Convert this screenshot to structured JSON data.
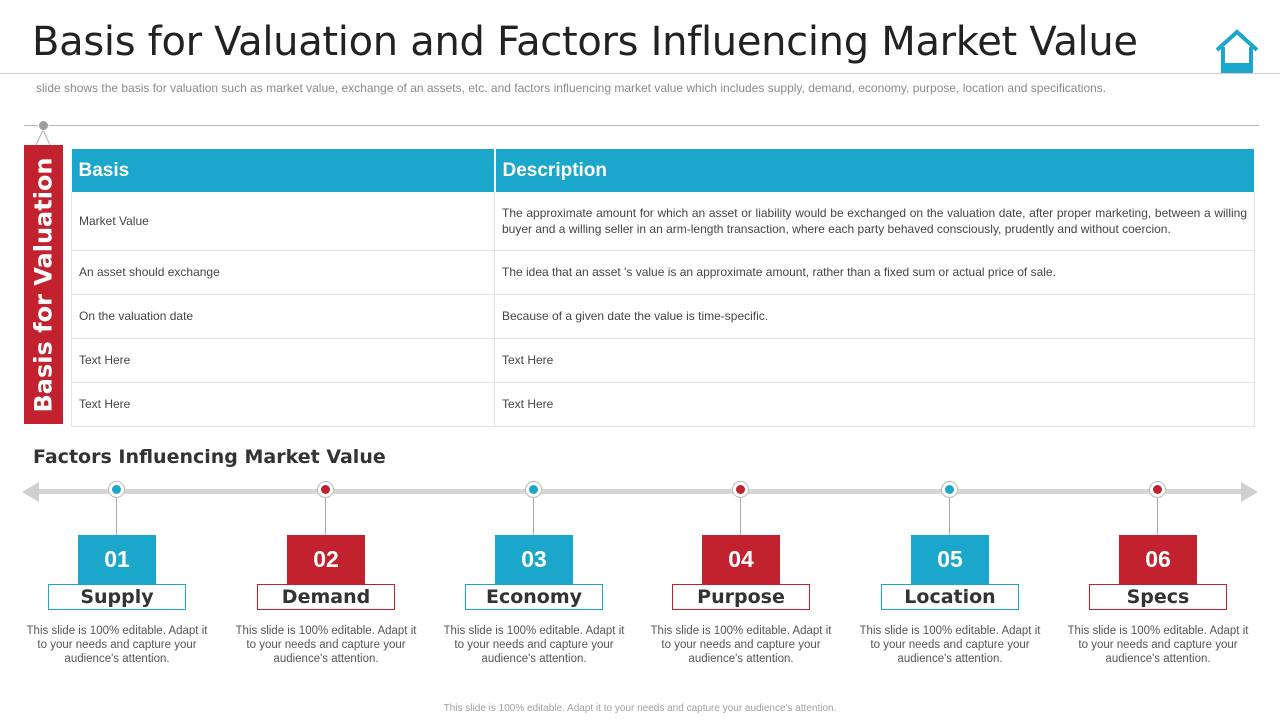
{
  "header": {
    "title": "Basis for Valuation and Factors Influencing Market Value",
    "subtitle": "slide shows the basis for valuation  such as market value,  exchange of an assets, etc. and factors influencing  market value  which includes supply,  demand,  economy,  purpose,  location and specifications.",
    "icon": "home-icon",
    "accent_color": "#1ba6cb"
  },
  "side_label": {
    "text": "Basis for Valuation",
    "color": "#c1222e"
  },
  "table": {
    "columns": [
      "Basis",
      "Description"
    ],
    "rows": [
      [
        "Market Value",
        "The approximate amount for which an asset or liability would be exchanged on the valuation date, after proper marketing, between a willing buyer and a willing seller in an arm-length transaction, where each party behaved consciously, prudently and without coercion."
      ],
      [
        "An asset should exchange",
        "The idea that an asset 's value  is an approximate  amount, rather than a fixed sum or actual price of sale."
      ],
      [
        "On the valuation  date",
        "Because of a given  date the value  is time-specific."
      ],
      [
        "Text Here",
        "Text Here"
      ],
      [
        "Text Here",
        "Text Here"
      ]
    ]
  },
  "factors": {
    "heading": "Factors Influencing Market Value",
    "items": [
      {
        "number": "01",
        "label": "Supply",
        "color": "#1ba6cb",
        "desc": "This slide is 100% editable. Adapt it to your needs and capture your audience's attention."
      },
      {
        "number": "02",
        "label": "Demand",
        "color": "#c1222e",
        "desc": "This slide is 100% editable. Adapt it to your needs and capture your audience's attention."
      },
      {
        "number": "03",
        "label": "Economy",
        "color": "#1ba6cb",
        "desc": "This slide is 100% editable. Adapt it to your needs and capture your audience's attention."
      },
      {
        "number": "04",
        "label": "Purpose",
        "color": "#c1222e",
        "desc": "This slide is 100% editable. Adapt it to your needs and capture your audience's attention."
      },
      {
        "number": "05",
        "label": "Location",
        "color": "#1ba6cb",
        "desc": "This slide is 100% editable. Adapt it to your needs and capture your audience's attention."
      },
      {
        "number": "06",
        "label": "Specs",
        "color": "#c1222e",
        "desc": "This slide is 100% editable. Adapt it to your needs and capture your audience's attention."
      }
    ]
  },
  "footer": "This slide is 100% editable.  Adapt it to your needs and capture your audience's attention."
}
